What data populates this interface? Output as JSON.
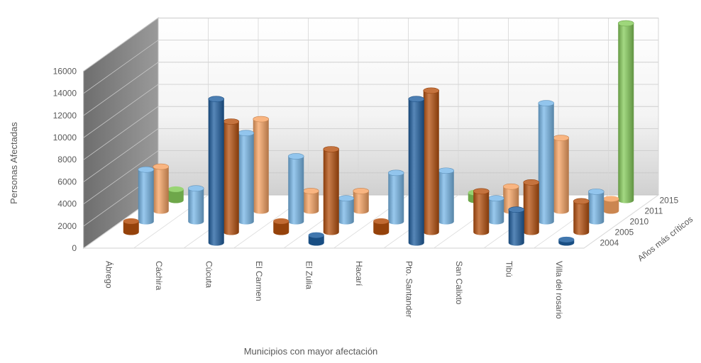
{
  "chart_data": {
    "type": "bar",
    "subtype": "3d-cylinder",
    "title": "",
    "xlabel": "Municipios con mayor afectación",
    "ylabel": "Personas Afectadas",
    "zlabel": "Años más críticos",
    "ylim": [
      0,
      16000
    ],
    "yticks": [
      "0",
      "2000",
      "4000",
      "6000",
      "8000",
      "10000",
      "12000",
      "14000",
      "16000"
    ],
    "categories": [
      "Ábrego",
      "Cáchira",
      "Cúcuta",
      "El Carmen",
      "El Zulia",
      "Hacarí",
      "Pto. Santander",
      "San Calixto",
      "Tibú",
      "Villa del rosario"
    ],
    "series": [
      {
        "name": "2004",
        "color": "#1f5fa0",
        "values": [
          0,
          0,
          13000,
          0,
          700,
          0,
          13000,
          0,
          3000,
          300
        ]
      },
      {
        "name": "2005",
        "color": "#b6500e",
        "values": [
          1000,
          0,
          10000,
          1000,
          7500,
          1000,
          12800,
          3700,
          4500,
          2800
        ]
      },
      {
        "name": "2010",
        "color": "#77b7e8",
        "values": [
          4700,
          3000,
          8000,
          5900,
          2100,
          4400,
          4600,
          2100,
          10700,
          2700
        ]
      },
      {
        "name": "2011",
        "color": "#f7a362",
        "values": [
          4000,
          0,
          8300,
          1800,
          1800,
          0,
          0,
          2200,
          6600,
          1100
        ]
      },
      {
        "name": "2015",
        "color": "#86cc5a",
        "values": [
          1000,
          3000,
          0,
          0,
          0,
          0,
          700,
          0,
          0,
          16000
        ]
      }
    ],
    "grid": true,
    "legend": "none"
  }
}
